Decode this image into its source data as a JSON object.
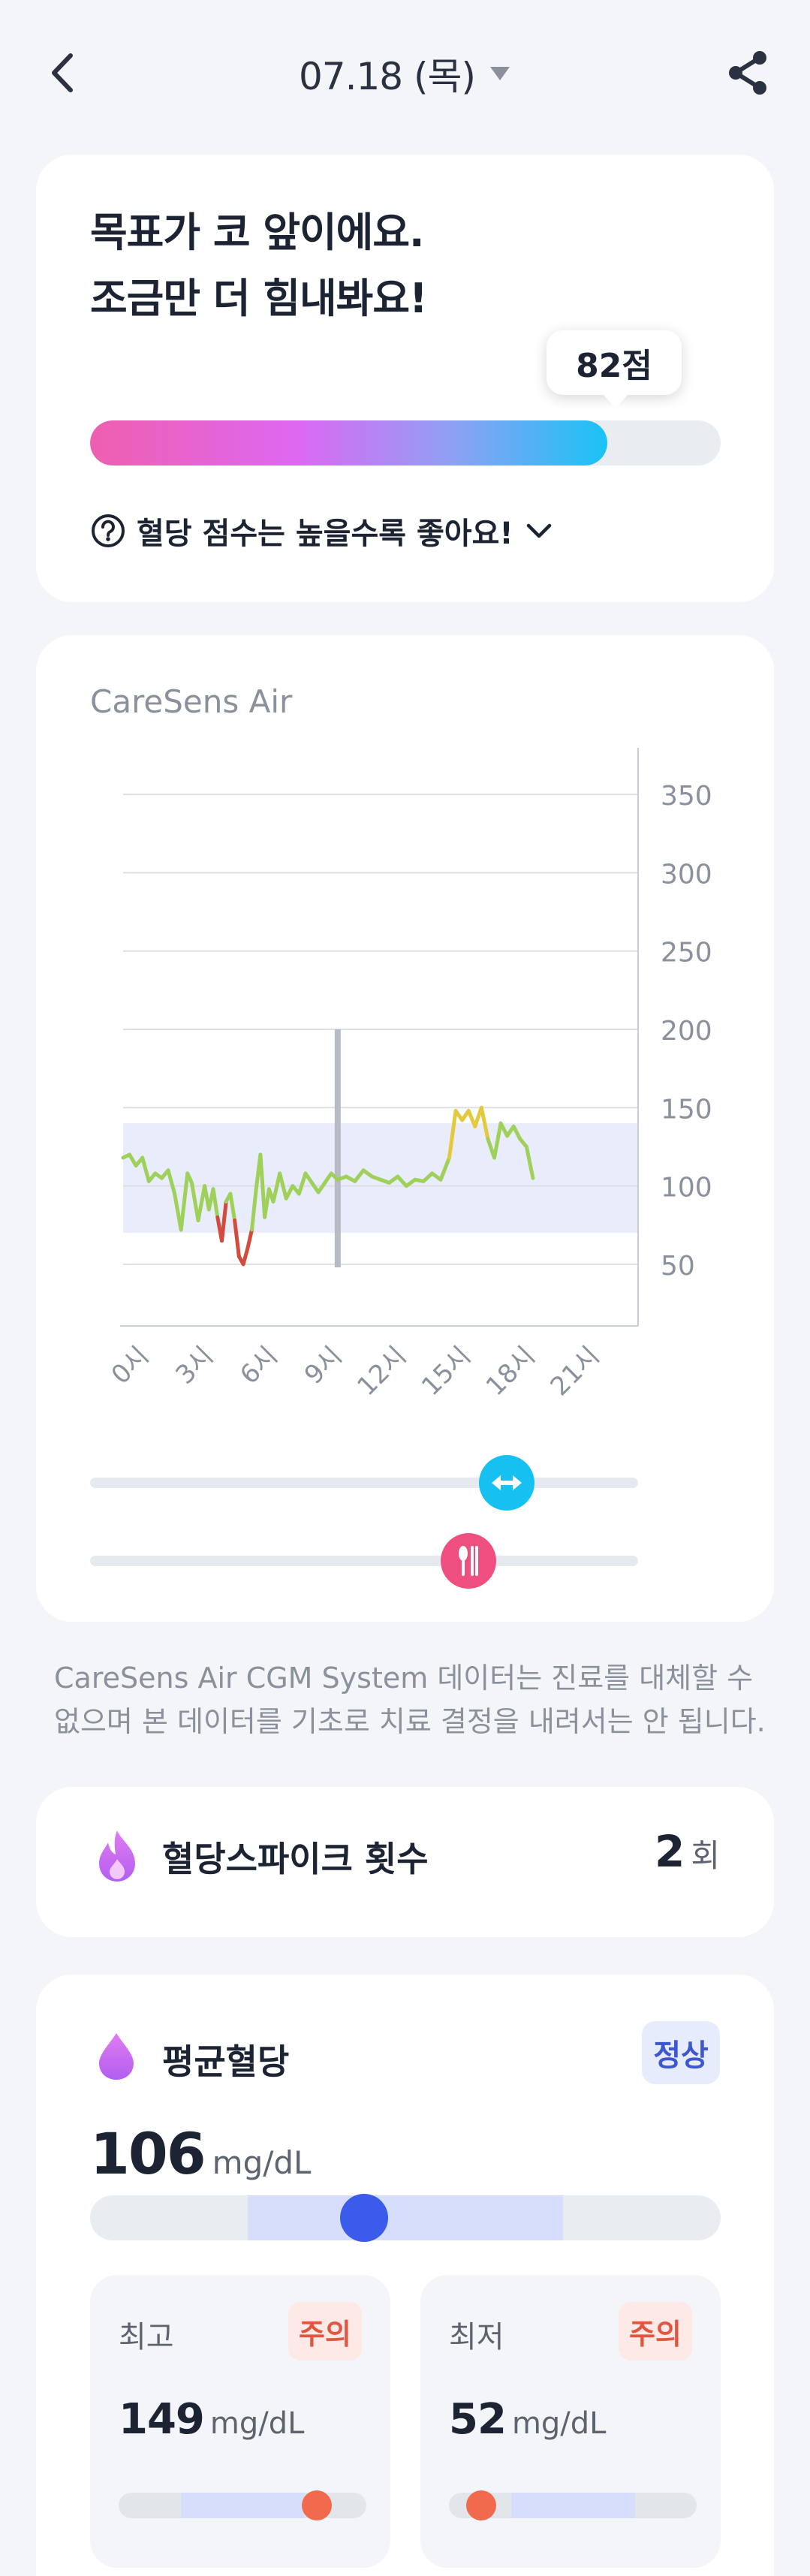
{
  "header": {
    "date_label": "07.18 (목)",
    "icons": {
      "back": "back-chevron-icon",
      "date_dropdown": "dropdown-caret-icon",
      "share": "share-icon"
    }
  },
  "score": {
    "title_line1": "목표가 코 앞이에요.",
    "title_line2": "조금만 더 힘내봐요!",
    "badge": "82점",
    "value": 82,
    "max": 100,
    "hint": "혈당 점수는 높을수록 좋아요!",
    "icons": {
      "help": "question-circle-icon",
      "expand": "chevron-down-icon"
    }
  },
  "chart": {
    "device": "CareSens Air",
    "slider_icons": {
      "range": "expand-arrows-icon",
      "meal": "utensils-icon"
    },
    "range_slider_position": 0.76,
    "meal_slider_position": 0.69
  },
  "chart_data": {
    "type": "line",
    "title": "",
    "xlabel": "",
    "ylabel": "",
    "x_ticks": [
      "0시",
      "3시",
      "6시",
      "9시",
      "12시",
      "15시",
      "18시",
      "21시"
    ],
    "y_ticks": [
      50,
      100,
      150,
      200,
      250,
      300,
      350
    ],
    "xlim": [
      0,
      24
    ],
    "ylim": [
      25,
      375
    ],
    "target_range": [
      70,
      140
    ],
    "cursor_hour": 10,
    "grid": true,
    "colors": {
      "normal": "#9fd05a",
      "high": "#e5c93c",
      "low": "#d24b3c",
      "target_band": "#e8ecfb"
    },
    "series": [
      {
        "x": [
          0,
          0.3,
          0.6,
          0.9,
          1.2,
          1.5,
          1.8,
          2.1,
          2.4,
          2.7,
          3.0,
          3.2,
          3.5,
          3.8,
          4.0,
          4.2,
          4.4,
          4.6,
          4.8,
          5.0,
          5.2,
          5.4,
          5.6,
          5.8,
          6.0,
          6.2,
          6.4,
          6.6,
          6.8,
          7.0,
          7.3,
          7.6,
          7.9,
          8.2,
          8.5,
          8.8,
          9.1,
          9.4,
          9.7,
          10.0,
          10.4,
          10.8,
          11.2,
          11.6,
          12.0,
          12.4,
          12.8,
          13.2,
          13.6,
          14.0,
          14.4,
          14.8,
          15.2,
          15.5,
          15.8,
          16.1,
          16.4,
          16.7,
          17.0,
          17.3,
          17.6,
          17.9,
          18.2,
          18.5,
          18.8,
          19.1
        ],
        "y": [
          118,
          120,
          113,
          118,
          103,
          108,
          105,
          110,
          95,
          72,
          108,
          102,
          78,
          100,
          85,
          98,
          80,
          65,
          90,
          95,
          78,
          55,
          50,
          60,
          72,
          98,
          120,
          80,
          98,
          90,
          108,
          92,
          100,
          95,
          108,
          102,
          96,
          102,
          108,
          104,
          106,
          103,
          110,
          106,
          104,
          102,
          106,
          100,
          104,
          103,
          108,
          104,
          118,
          148,
          142,
          148,
          138,
          150,
          130,
          118,
          140,
          132,
          138,
          130,
          125,
          105
        ]
      }
    ]
  },
  "disclaimer": "CareSens Air CGM System 데이터는 진료를 대체할 수 없으며 본 데이터를 기초로 치료 결정을 내려서는 안 됩니다.",
  "spike": {
    "label": "혈당스파이크 횟수",
    "value": "2",
    "unit": "회",
    "icon": "flame-icon"
  },
  "average": {
    "label": "평균혈당",
    "badge": "정상",
    "value": "106",
    "unit": "mg/dL",
    "icon": "drop-icon",
    "range_start": 0.25,
    "range_end": 0.75,
    "dot_position": 0.435
  },
  "max": {
    "label": "최고",
    "badge": "주의",
    "value": "149",
    "unit": "mg/dL",
    "range_start": 0.25,
    "range_end": 0.75,
    "dot_position": 0.8
  },
  "min": {
    "label": "최저",
    "badge": "주의",
    "value": "52",
    "unit": "mg/dL",
    "range_start": 0.25,
    "range_end": 0.75,
    "dot_position": 0.13
  }
}
